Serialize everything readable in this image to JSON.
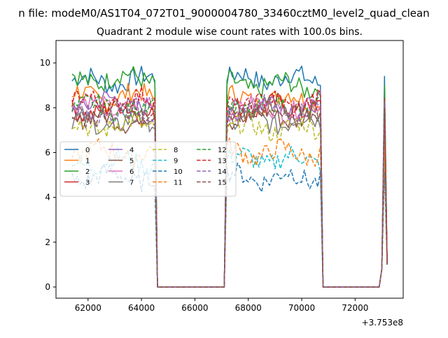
{
  "figure": {
    "suptitle": "n file: modeM0/AS1T04_072T01_9000004780_33460cztM0_level2_quad_clean",
    "offset_label": "+3.753e8"
  },
  "chart_data": {
    "type": "line",
    "title": "Quadrant 2 module wise count rates with 100.0s bins.",
    "xlabel": "",
    "ylabel": "",
    "x_offset": 375300000,
    "xlim": [
      60800,
      73800
    ],
    "ylim": [
      -0.5,
      11
    ],
    "x_ticks": [
      62000,
      64000,
      66000,
      68000,
      70000,
      72000
    ],
    "x_tick_labels": [
      "62000",
      "64000",
      "66000",
      "68000",
      "70000",
      "72000"
    ],
    "y_ticks": [
      0,
      2,
      4,
      6,
      8,
      10
    ],
    "y_tick_labels": [
      "0",
      "2",
      "4",
      "6",
      "8",
      "10"
    ],
    "grid": false,
    "legend": {
      "placement": "center-left",
      "ncol": 4
    },
    "segments": [
      {
        "x_start": 61400,
        "x_end": 64500
      },
      {
        "x_start": 67200,
        "x_end": 70700
      },
      {
        "x_start": 73100,
        "x_end": 73100
      }
    ],
    "gap_ranges": [
      [
        64600,
        67100
      ],
      [
        70800,
        72900
      ]
    ],
    "step": 100,
    "series": [
      {
        "name": "0",
        "color": "#1f77b4",
        "dash": "solid",
        "level1": 9.2,
        "level2": 9.3,
        "spike": 9.4
      },
      {
        "name": "1",
        "color": "#ff7f0e",
        "dash": "solid",
        "level1": 8.5,
        "level2": 8.4,
        "spike": 8.5
      },
      {
        "name": "2",
        "color": "#2ca02c",
        "dash": "solid",
        "level1": 9.3,
        "level2": 9.0,
        "spike": 9.0
      },
      {
        "name": "3",
        "color": "#d62728",
        "dash": "solid",
        "level1": 7.9,
        "level2": 8.0,
        "spike": 8.2
      },
      {
        "name": "4",
        "color": "#9467bd",
        "dash": "solid",
        "level1": 8.2,
        "level2": 8.1,
        "spike": 8.4
      },
      {
        "name": "5",
        "color": "#8c564b",
        "dash": "solid",
        "level1": 7.5,
        "level2": 7.6,
        "spike": 7.8
      },
      {
        "name": "6",
        "color": "#e377c2",
        "dash": "solid",
        "level1": 8.1,
        "level2": 8.0,
        "spike": 8.3
      },
      {
        "name": "7",
        "color": "#7f7f7f",
        "dash": "solid",
        "level1": 7.3,
        "level2": 7.4,
        "spike": 7.6
      },
      {
        "name": "8",
        "color": "#bcbd22",
        "dash": "dashed",
        "level1": 7.2,
        "level2": 7.1,
        "spike": 7.4
      },
      {
        "name": "9",
        "color": "#17becf",
        "dash": "dashed",
        "level1": 5.6,
        "level2": 5.7,
        "spike": 6.0
      },
      {
        "name": "10",
        "color": "#1f77b4",
        "dash": "dashed",
        "level1": 4.9,
        "level2": 4.9,
        "spike": 5.2
      },
      {
        "name": "11",
        "color": "#ff7f0e",
        "dash": "dashed",
        "level1": 6.0,
        "level2": 6.0,
        "spike": 6.3
      },
      {
        "name": "12",
        "color": "#2ca02c",
        "dash": "dashed",
        "level1": 8.0,
        "level2": 8.0,
        "spike": 8.3
      },
      {
        "name": "13",
        "color": "#d62728",
        "dash": "dashed",
        "level1": 8.3,
        "level2": 8.2,
        "spike": 8.4
      },
      {
        "name": "14",
        "color": "#9467bd",
        "dash": "dashed",
        "level1": 7.8,
        "level2": 7.9,
        "spike": 8.2
      },
      {
        "name": "15",
        "color": "#8c564b",
        "dash": "dashed",
        "level1": 7.7,
        "level2": 7.8,
        "spike": 8.0
      }
    ]
  }
}
